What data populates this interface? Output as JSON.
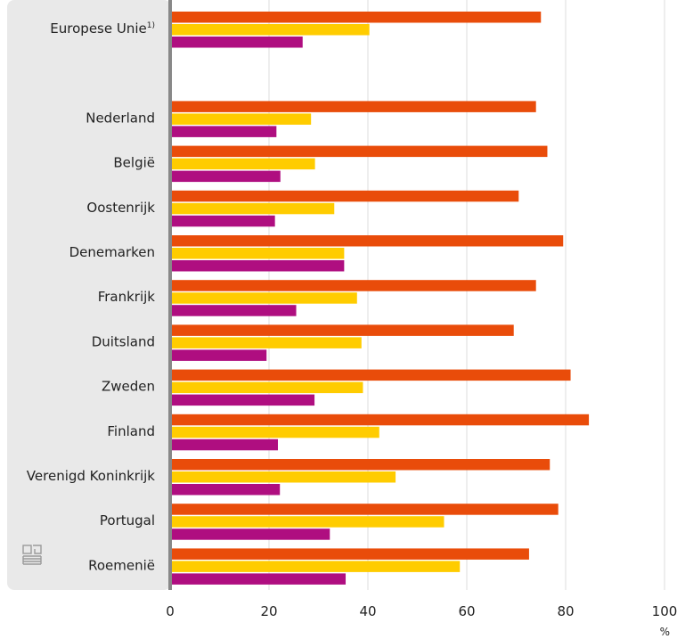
{
  "chart_data": {
    "type": "bar",
    "orientation": "horizontal",
    "categories": [
      "Europese Unie",
      "",
      "Nederland",
      "België",
      "Oostenrijk",
      "Denemarken",
      "Frankrijk",
      "Duitsland",
      "Zweden",
      "Finland",
      "Verenigd Koninkrijk",
      "Portugal",
      "Roemenië"
    ],
    "category_footnotes": [
      "1)",
      "",
      "",
      "",
      "",
      "",
      "",
      "",
      "",
      "",
      "",
      "",
      ""
    ],
    "series": [
      {
        "values": [
          75,
          null,
          74,
          76.3,
          70.5,
          79.5,
          74,
          69.5,
          81,
          84.7,
          76.8,
          78.5,
          72.6
        ]
      },
      {
        "values": [
          40.3,
          null,
          28.5,
          29.3,
          33.2,
          35.2,
          37.8,
          38.7,
          39,
          42.3,
          45.6,
          55.4,
          58.6
        ]
      },
      {
        "values": [
          26.8,
          null,
          21.5,
          22.3,
          21.2,
          35.2,
          25.5,
          19.5,
          29.2,
          21.8,
          22.2,
          32.3,
          35.5
        ]
      }
    ],
    "colors": [
      "#e94c0a",
      "#ffcc00",
      "#af0e80"
    ],
    "xlim": [
      0,
      100
    ],
    "xticks": [
      "0",
      "20",
      "40",
      "60",
      "80",
      "100"
    ],
    "x_unit": "%",
    "grid": true,
    "legend": "none",
    "logo": "cbs-logo-icon"
  }
}
